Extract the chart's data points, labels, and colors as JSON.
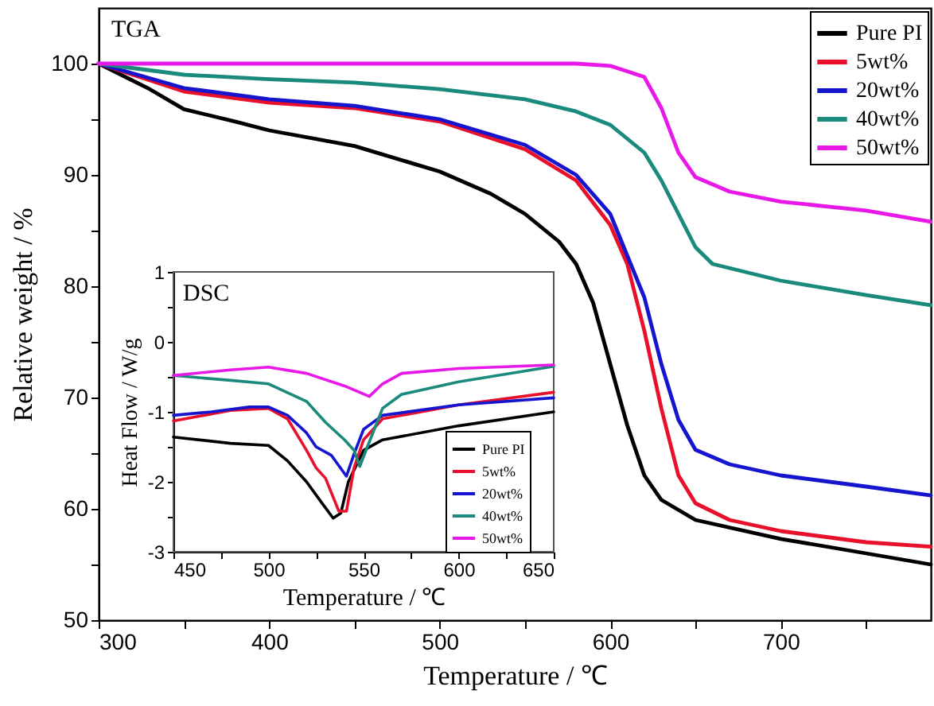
{
  "chart_data": [
    {
      "type": "line",
      "xlabel": "Temperature / ℃",
      "ylabel": "Relative weight / %",
      "annotations": [
        "TGA"
      ],
      "legend": "top right",
      "xlim": [
        300,
        788
      ],
      "ylim": [
        50,
        105
      ],
      "xticks": [
        300,
        {
          "value": 350,
          "label": null
        },
        400,
        {
          "value": 450,
          "label": null
        },
        500,
        {
          "value": 550,
          "label": null
        },
        600,
        {
          "value": 650,
          "label": null
        },
        700,
        {
          "value": 750,
          "label": null
        }
      ],
      "yticks": [
        50,
        {
          "value": 55,
          "label": null
        },
        60,
        {
          "value": 65,
          "label": null
        },
        70,
        {
          "value": 75,
          "label": null
        },
        80,
        {
          "value": 85,
          "label": null
        },
        90,
        {
          "value": 95,
          "label": null
        },
        100
      ],
      "series": [
        {
          "name": "Pure PI",
          "color": "#000000",
          "x": [
            300,
            330,
            350,
            380,
            400,
            450,
            500,
            530,
            550,
            570,
            580,
            590,
            600,
            610,
            620,
            630,
            650,
            700,
            750,
            788
          ],
          "values": [
            100,
            97.7,
            95.9,
            94.8,
            94.0,
            92.6,
            90.3,
            88.3,
            86.5,
            84.0,
            82.0,
            78.5,
            73.0,
            67.5,
            63.0,
            60.8,
            59.0,
            57.3,
            56.0,
            55.0
          ]
        },
        {
          "name": "5wt%",
          "color": "#e8102a",
          "x": [
            300,
            330,
            350,
            400,
            450,
            500,
            550,
            580,
            600,
            610,
            620,
            630,
            640,
            650,
            670,
            700,
            750,
            788
          ],
          "values": [
            100,
            98.5,
            97.5,
            96.5,
            96.0,
            94.8,
            92.3,
            89.5,
            85.5,
            82.0,
            76.0,
            69.0,
            63.0,
            60.5,
            59.0,
            58.0,
            57.0,
            56.6
          ]
        },
        {
          "name": "20wt%",
          "color": "#1515d0",
          "x": [
            300,
            350,
            400,
            450,
            500,
            550,
            580,
            600,
            620,
            630,
            640,
            650,
            670,
            700,
            750,
            788
          ],
          "values": [
            100,
            97.8,
            96.8,
            96.2,
            95.0,
            92.7,
            90.0,
            86.5,
            79.0,
            73.0,
            68.0,
            65.3,
            64.0,
            63.0,
            62.0,
            61.2
          ]
        },
        {
          "name": "40wt%",
          "color": "#1a8a7c",
          "x": [
            300,
            350,
            400,
            450,
            500,
            550,
            580,
            600,
            620,
            630,
            640,
            650,
            660,
            700,
            750,
            788
          ],
          "values": [
            100,
            99.0,
            98.6,
            98.3,
            97.7,
            96.8,
            95.7,
            94.5,
            92.0,
            89.5,
            86.5,
            83.5,
            82.0,
            80.5,
            79.2,
            78.3
          ]
        },
        {
          "name": "50wt%",
          "color": "#e818e8",
          "x": [
            300,
            580,
            600,
            620,
            630,
            640,
            650,
            670,
            700,
            750,
            788
          ],
          "values": [
            100,
            100,
            99.8,
            98.8,
            96.0,
            92.0,
            89.8,
            88.5,
            87.6,
            86.8,
            85.8
          ]
        }
      ]
    },
    {
      "type": "line",
      "xlabel": "Temperature / ℃",
      "ylabel": "Heat Flow / W/g",
      "annotations": [
        "DSC"
      ],
      "legend": "bottom right",
      "xlim": [
        450,
        650
      ],
      "ylim": [
        -3,
        1
      ],
      "xticks": [
        450,
        {
          "value": 475,
          "label": null
        },
        500,
        {
          "value": 525,
          "label": null
        },
        550,
        {
          "value": 575,
          "label": null
        },
        600,
        {
          "value": 625,
          "label": null
        },
        650
      ],
      "yticks": [
        -3,
        {
          "value": -2.5,
          "label": null
        },
        -2,
        {
          "value": -1.5,
          "label": null
        },
        -1,
        {
          "value": -0.5,
          "label": null
        },
        0,
        {
          "value": 0.5,
          "label": null
        },
        1
      ],
      "series": [
        {
          "name": "Pure PI",
          "color": "#000000",
          "x": [
            450,
            480,
            500,
            510,
            520,
            528,
            534,
            538,
            542,
            550,
            560,
            600,
            650
          ],
          "values": [
            -1.36,
            -1.45,
            -1.48,
            -1.7,
            -2.0,
            -2.3,
            -2.52,
            -2.45,
            -2.0,
            -1.55,
            -1.4,
            -1.2,
            -1.0
          ]
        },
        {
          "name": "5wt%",
          "color": "#e8102a",
          "x": [
            450,
            480,
            500,
            510,
            520,
            525,
            530,
            537,
            541,
            545,
            550,
            560,
            600,
            650
          ],
          "values": [
            -1.13,
            -0.98,
            -0.95,
            -1.1,
            -1.55,
            -1.8,
            -1.95,
            -2.42,
            -2.42,
            -1.8,
            -1.4,
            -1.1,
            -0.9,
            -0.72
          ]
        },
        {
          "name": "20wt%",
          "color": "#1515d0",
          "x": [
            450,
            470,
            490,
            500,
            510,
            520,
            525,
            533,
            541,
            545,
            550,
            560,
            600,
            650
          ],
          "values": [
            -1.05,
            -1.0,
            -0.93,
            -0.93,
            -1.05,
            -1.3,
            -1.5,
            -1.62,
            -1.92,
            -1.6,
            -1.25,
            -1.05,
            -0.9,
            -0.8
          ]
        },
        {
          "name": "40wt%",
          "color": "#1a8a7c",
          "x": [
            450,
            480,
            500,
            520,
            530,
            540,
            545,
            548,
            552,
            560,
            570,
            600,
            650
          ],
          "values": [
            -0.48,
            -0.55,
            -0.6,
            -0.85,
            -1.15,
            -1.4,
            -1.55,
            -1.78,
            -1.5,
            -0.95,
            -0.75,
            -0.57,
            -0.35
          ]
        },
        {
          "name": "50wt%",
          "color": "#e818e8",
          "x": [
            450,
            480,
            500,
            520,
            540,
            553,
            560,
            570,
            600,
            650
          ],
          "values": [
            -0.48,
            -0.4,
            -0.36,
            -0.45,
            -0.63,
            -0.78,
            -0.6,
            -0.45,
            -0.38,
            -0.33
          ]
        }
      ]
    }
  ]
}
